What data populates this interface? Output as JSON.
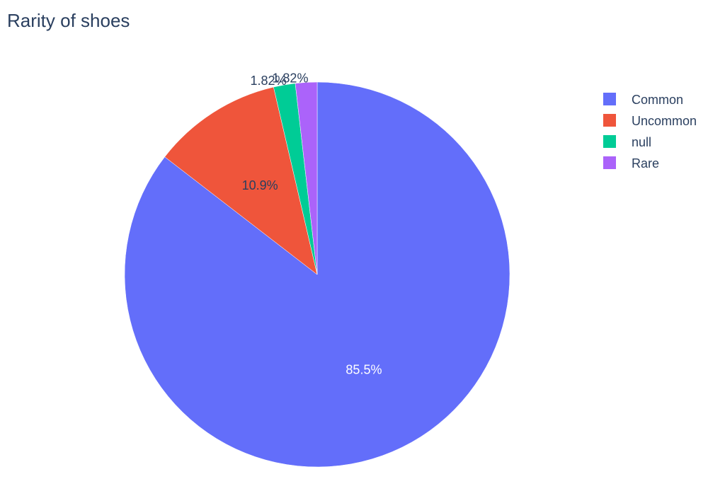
{
  "chart_data": {
    "type": "pie",
    "title": "Rarity of shoes",
    "slices": [
      {
        "label": "Common",
        "value": 85.5,
        "text": "85.5%",
        "color": "#636efa",
        "label_color": "#ffffff"
      },
      {
        "label": "Uncommon",
        "value": 10.9,
        "text": "10.9%",
        "color": "#ef553b",
        "label_color": "#2a3f5f"
      },
      {
        "label": "null",
        "value": 1.82,
        "text": "1.82%",
        "color": "#00cc96",
        "label_color": "#2a3f5f"
      },
      {
        "label": "Rare",
        "value": 1.82,
        "text": "1.82%",
        "color": "#ab63fa",
        "label_color": "#2a3f5f"
      }
    ],
    "direction": "clockwise",
    "legend_position": "top-right"
  },
  "colors": {
    "title": "#2a3f5f",
    "slice_border": "#ffffff"
  }
}
